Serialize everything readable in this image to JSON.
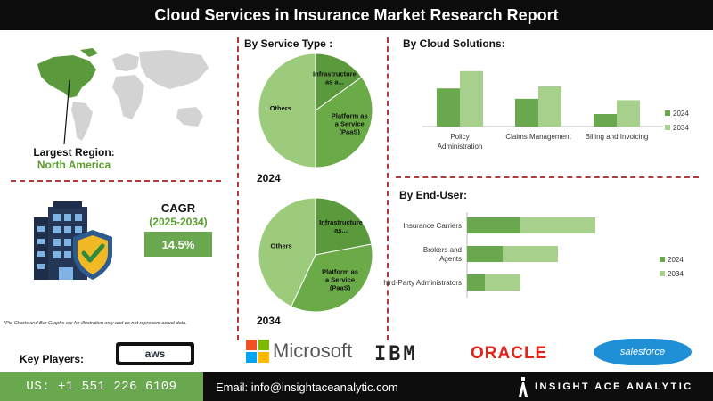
{
  "header": {
    "title": "Cloud Services in Insurance Market Research Report"
  },
  "region": {
    "label": "Largest Region:",
    "value": "North America"
  },
  "cagr": {
    "label": "CAGR",
    "period": "(2025-2034)",
    "value": "14.5%"
  },
  "footnote": "*Pie Charts and Bar Graphs are for illustration only and do not represent actual data.",
  "key_players": {
    "label": "Key Players:",
    "logos": [
      "aws",
      "Microsoft",
      "IBM",
      "ORACLE",
      "salesforce"
    ]
  },
  "footer": {
    "phone": "US: +1 551 226 6109",
    "email": "Email: info@insightaceanalytic.com",
    "brand": "INSIGHT ACE ANALYTIC"
  },
  "colors": {
    "dark_green": "#5b9a3c",
    "light_green": "#a8d08d",
    "mid_green": "#7ab55c",
    "accent_red": "#b23a3a",
    "brand_blue": "#1f8fd6",
    "oracle_red": "#e2231a"
  },
  "chart_data": [
    {
      "type": "pie",
      "title": "By Service Type :",
      "year_label": "2024",
      "slices": [
        {
          "label": "Infrastructure as a...",
          "value": 15,
          "color": "#5b9a3c"
        },
        {
          "label": "Platform as a Service (PaaS)",
          "value": 35,
          "color": "#6aab48"
        },
        {
          "label": "Others",
          "value": 50,
          "color": "#9ccb7b"
        }
      ]
    },
    {
      "type": "pie",
      "year_label": "2034",
      "slices": [
        {
          "label": "Infrastructure as...",
          "value": 22,
          "color": "#5b9a3c"
        },
        {
          "label": "Platform as a Service (PaaS)",
          "value": 35,
          "color": "#6aab48"
        },
        {
          "label": "Others",
          "value": 43,
          "color": "#9ccb7b"
        }
      ]
    },
    {
      "type": "bar",
      "title": "By Cloud Solutions:",
      "categories": [
        "Policy Administration",
        "Claims Management",
        "Billing and Invoicing"
      ],
      "series": [
        {
          "name": "2024",
          "values": [
            55,
            40,
            18
          ],
          "color": "#6aa84f"
        },
        {
          "name": "2034",
          "values": [
            80,
            58,
            38
          ],
          "color": "#a8d08d"
        }
      ],
      "ylim": [
        0,
        90
      ]
    },
    {
      "type": "bar",
      "orientation": "horizontal",
      "title": "By End-User:",
      "categories": [
        "Insurance Carriers",
        "Brokers and Agents",
        "Third-Party Administrators"
      ],
      "series": [
        {
          "name": "2024",
          "values": [
            30,
            20,
            10
          ],
          "color": "#6aa84f"
        },
        {
          "name": "2034",
          "values": [
            42,
            31,
            20
          ],
          "color": "#a8d08d"
        }
      ],
      "xlim": [
        0,
        80
      ]
    }
  ]
}
